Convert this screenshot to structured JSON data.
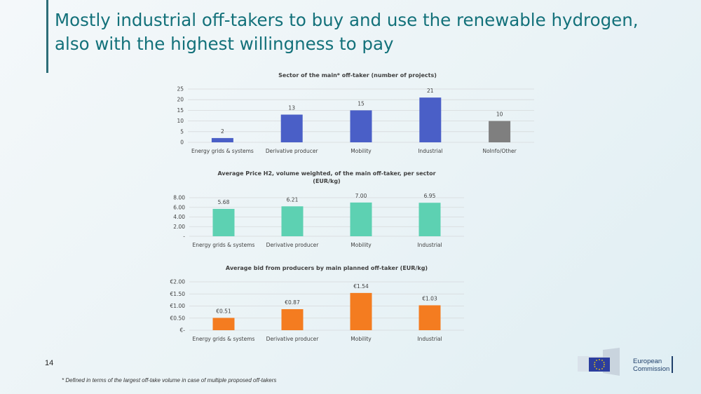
{
  "slide": {
    "title": "Mostly industrial off-takers to buy and use the renewable hydrogen, also with the highest willingness to pay",
    "page_number": "14",
    "footnote": "* Defined in terms of the largest off-take volume in case of multiple proposed off-takers",
    "logo_text_line1": "European",
    "logo_text_line2": "Commission"
  },
  "chart_data": [
    {
      "type": "bar",
      "title": "Sector of the main* off-taker (number of projects)",
      "title_line2": "",
      "categories": [
        "Energy grids & systems",
        "Derivative producer",
        "Mobility",
        "Industrial",
        "NoInfo/Other"
      ],
      "values": [
        2,
        13,
        15,
        21,
        10
      ],
      "data_labels": [
        "2",
        "13",
        "15",
        "21",
        "10"
      ],
      "bar_colors": [
        "#4a5fc7",
        "#4a5fc7",
        "#4a5fc7",
        "#4a5fc7",
        "#7f7f7f"
      ],
      "ylim": [
        0,
        25
      ],
      "yticks": [
        0,
        5,
        10,
        15,
        20,
        25
      ],
      "ytick_labels": [
        "0",
        "5",
        "10",
        "15",
        "20",
        "25"
      ],
      "grid": true
    },
    {
      "type": "bar",
      "title": "Average Price H2, volume weighted, of the main off-taker, per sector",
      "title_line2": "(EUR/kg)",
      "categories": [
        "Energy grids & systems",
        "Derivative producer",
        "Mobility",
        "Industrial"
      ],
      "values": [
        5.68,
        6.21,
        7.0,
        6.95
      ],
      "data_labels": [
        "5.68",
        "6.21",
        "7.00",
        "6.95"
      ],
      "bar_colors": [
        "#5dd1b2",
        "#5dd1b2",
        "#5dd1b2",
        "#5dd1b2"
      ],
      "ylim": [
        0,
        8
      ],
      "yticks": [
        0,
        2,
        4,
        6,
        8
      ],
      "ytick_labels": [
        "-",
        "2.00",
        "4.00",
        "6.00",
        "8.00"
      ],
      "grid": true
    },
    {
      "type": "bar",
      "title": "Average bid from producers by main planned off-taker (EUR/kg)",
      "title_line2": "",
      "categories": [
        "Energy grids & systems",
        "Derivative producer",
        "Mobility",
        "Industrial"
      ],
      "values": [
        0.51,
        0.87,
        1.54,
        1.03
      ],
      "data_labels": [
        "€0.51",
        "€0.87",
        "€1.54",
        "€1.03"
      ],
      "bar_colors": [
        "#f47c20",
        "#f47c20",
        "#f47c20",
        "#f47c20"
      ],
      "ylim": [
        0,
        2
      ],
      "yticks": [
        0,
        0.5,
        1,
        1.5,
        2
      ],
      "ytick_labels": [
        "€-",
        "€0.50",
        "€1.00",
        "€1.50",
        "€2.00"
      ],
      "grid": true
    }
  ]
}
